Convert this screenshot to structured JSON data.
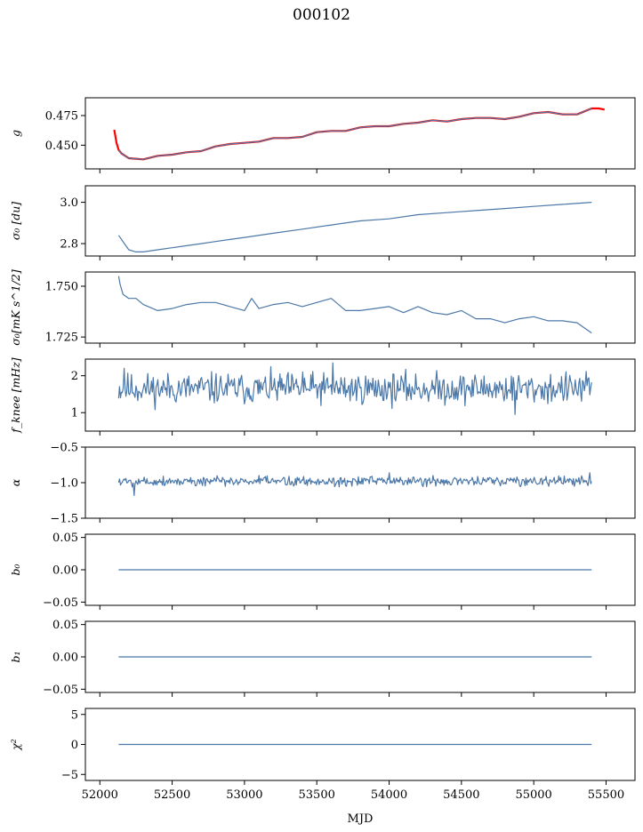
{
  "figure": {
    "title": "000102",
    "xlabel": "MJD"
  },
  "colors": {
    "line": "#4c78a8",
    "overlay": "#ff0000",
    "axes": "#000000",
    "background": "#ffffff"
  },
  "chart_data": [
    {
      "id": "g",
      "type": "line",
      "ylabel": "g",
      "xlim": [
        51900,
        55700
      ],
      "ylim": [
        0.43,
        0.49
      ],
      "yticks": [
        0.45,
        0.475
      ],
      "ytick_labels": [
        "0.450",
        "0.475"
      ],
      "grid": false,
      "series": [
        {
          "color": "#ff0000",
          "x": [
            52100,
            52115,
            52130,
            52150,
            52200,
            52300,
            52400,
            52500,
            52600,
            52700,
            52800,
            52900,
            53000,
            53100,
            53200,
            53300,
            53400,
            53500,
            53600,
            53700,
            53800,
            53900,
            54000,
            54100,
            54200,
            54300,
            54400,
            54500,
            54600,
            54700,
            54800,
            54900,
            55000,
            55100,
            55200,
            55300,
            55400,
            55450,
            55490
          ],
          "y": [
            0.463,
            0.452,
            0.446,
            0.443,
            0.439,
            0.438,
            0.441,
            0.442,
            0.444,
            0.445,
            0.449,
            0.451,
            0.452,
            0.453,
            0.456,
            0.456,
            0.457,
            0.461,
            0.462,
            0.462,
            0.465,
            0.466,
            0.466,
            0.468,
            0.469,
            0.471,
            0.47,
            0.472,
            0.473,
            0.473,
            0.472,
            0.474,
            0.477,
            0.478,
            0.476,
            0.476,
            0.481,
            0.481,
            0.48
          ]
        },
        {
          "color": "#4c78a8",
          "x": [
            52130,
            52150,
            52200,
            52300,
            52400,
            52500,
            52600,
            52700,
            52800,
            52900,
            53000,
            53100,
            53200,
            53300,
            53400,
            53500,
            53600,
            53700,
            53800,
            53900,
            54000,
            54100,
            54200,
            54300,
            54400,
            54500,
            54600,
            54700,
            54800,
            54900,
            55000,
            55100,
            55200,
            55300,
            55400
          ],
          "y": [
            0.446,
            0.443,
            0.439,
            0.438,
            0.441,
            0.442,
            0.444,
            0.445,
            0.449,
            0.451,
            0.452,
            0.453,
            0.456,
            0.456,
            0.457,
            0.461,
            0.462,
            0.462,
            0.465,
            0.466,
            0.466,
            0.468,
            0.469,
            0.471,
            0.47,
            0.472,
            0.473,
            0.473,
            0.472,
            0.474,
            0.477,
            0.478,
            0.476,
            0.476,
            0.481
          ]
        }
      ]
    },
    {
      "id": "sigma0_du",
      "type": "line",
      "ylabel": "σ₀ [du]",
      "xlim": [
        51900,
        55700
      ],
      "ylim": [
        2.74,
        3.08
      ],
      "yticks": [
        2.8,
        3.0
      ],
      "ytick_labels": [
        "2.8",
        "3.0"
      ],
      "grid": false,
      "series": [
        {
          "color": "#4c78a8",
          "x": [
            52130,
            52170,
            52200,
            52250,
            52300,
            52400,
            52500,
            52600,
            52700,
            52800,
            52900,
            53000,
            53200,
            53400,
            53600,
            53800,
            54000,
            54200,
            54400,
            54600,
            54800,
            55000,
            55200,
            55400
          ],
          "y": [
            2.84,
            2.8,
            2.77,
            2.76,
            2.76,
            2.77,
            2.78,
            2.79,
            2.8,
            2.81,
            2.82,
            2.83,
            2.85,
            2.87,
            2.89,
            2.91,
            2.92,
            2.94,
            2.95,
            2.96,
            2.97,
            2.98,
            2.99,
            3.0
          ]
        }
      ]
    },
    {
      "id": "sigma0_mk",
      "type": "line",
      "ylabel": "σ₀[mK s^1/2]",
      "xlim": [
        51900,
        55700
      ],
      "ylim": [
        1.722,
        1.757
      ],
      "yticks": [
        1.725,
        1.75
      ],
      "ytick_labels": [
        "1.725",
        "1.750"
      ],
      "grid": false,
      "series": [
        {
          "color": "#4c78a8",
          "x": [
            52130,
            52140,
            52160,
            52200,
            52250,
            52300,
            52400,
            52500,
            52600,
            52700,
            52800,
            52900,
            53000,
            53050,
            53100,
            53200,
            53300,
            53400,
            53500,
            53600,
            53700,
            53800,
            53900,
            54000,
            54100,
            54200,
            54300,
            54400,
            54500,
            54600,
            54700,
            54800,
            54900,
            55000,
            55100,
            55200,
            55300,
            55400
          ],
          "y": [
            1.755,
            1.751,
            1.746,
            1.744,
            1.744,
            1.741,
            1.738,
            1.739,
            1.741,
            1.742,
            1.742,
            1.74,
            1.738,
            1.744,
            1.739,
            1.741,
            1.742,
            1.74,
            1.742,
            1.744,
            1.738,
            1.738,
            1.739,
            1.74,
            1.737,
            1.74,
            1.737,
            1.736,
            1.738,
            1.734,
            1.734,
            1.732,
            1.734,
            1.735,
            1.733,
            1.733,
            1.732,
            1.727
          ]
        }
      ]
    },
    {
      "id": "fknee",
      "type": "line",
      "ylabel": "f_knee [mHz]",
      "xlim": [
        51900,
        55700
      ],
      "ylim": [
        0.5,
        2.45
      ],
      "yticks": [
        1,
        2
      ],
      "ytick_labels": [
        "1",
        "2"
      ],
      "grid": false,
      "noise": {
        "seed": 11,
        "x_start": 52130,
        "x_end": 55400,
        "n": 520,
        "mean": 1.65,
        "amp": 0.32,
        "spikes": [
          [
            53610,
            2.35
          ],
          [
            54870,
            0.95
          ],
          [
            53400,
            2.1
          ],
          [
            52170,
            2.2
          ]
        ]
      },
      "series": [
        {
          "color": "#4c78a8"
        }
      ]
    },
    {
      "id": "alpha",
      "type": "line",
      "ylabel": "α",
      "xlim": [
        51900,
        55700
      ],
      "ylim": [
        -1.5,
        -0.5
      ],
      "yticks": [
        -1.5,
        -1.0,
        -0.5
      ],
      "ytick_labels": [
        "−1.5",
        "−1.0",
        "−0.5"
      ],
      "grid": false,
      "noise": {
        "seed": 5,
        "x_start": 52130,
        "x_end": 55400,
        "n": 520,
        "mean": -0.98,
        "amp": 0.055,
        "spikes": [
          [
            52240,
            -1.18
          ],
          [
            55390,
            -0.86
          ],
          [
            54000,
            -0.86
          ]
        ]
      },
      "series": [
        {
          "color": "#4c78a8"
        }
      ]
    },
    {
      "id": "b0",
      "type": "line",
      "ylabel": "b₀",
      "xlim": [
        51900,
        55700
      ],
      "ylim": [
        -0.055,
        0.055
      ],
      "yticks": [
        -0.05,
        0.0,
        0.05
      ],
      "ytick_labels": [
        "−0.05",
        "0.00",
        "0.05"
      ],
      "grid": false,
      "series": [
        {
          "color": "#4c78a8",
          "x": [
            52130,
            55400
          ],
          "y": [
            0,
            0
          ]
        }
      ]
    },
    {
      "id": "b1",
      "type": "line",
      "ylabel": "b₁",
      "xlim": [
        51900,
        55700
      ],
      "ylim": [
        -0.055,
        0.055
      ],
      "yticks": [
        -0.05,
        0.0,
        0.05
      ],
      "ytick_labels": [
        "−0.05",
        "0.00",
        "0.05"
      ],
      "grid": false,
      "series": [
        {
          "color": "#4c78a8",
          "x": [
            52130,
            55400
          ],
          "y": [
            0,
            0
          ]
        }
      ]
    },
    {
      "id": "chi2",
      "type": "line",
      "ylabel": "χ²",
      "xlim": [
        51900,
        55700
      ],
      "ylim": [
        -6,
        6
      ],
      "yticks": [
        -5,
        0,
        5
      ],
      "ytick_labels": [
        "−5",
        "0",
        "5"
      ],
      "grid": false,
      "xticks": [
        52000,
        52500,
        53000,
        53500,
        54000,
        54500,
        55000,
        55500
      ],
      "xtick_labels": [
        "52000",
        "52500",
        "53000",
        "53500",
        "54000",
        "54500",
        "55000",
        "55500"
      ],
      "series": [
        {
          "color": "#4c78a8",
          "x": [
            52130,
            55400
          ],
          "y": [
            0,
            0
          ]
        }
      ]
    }
  ]
}
